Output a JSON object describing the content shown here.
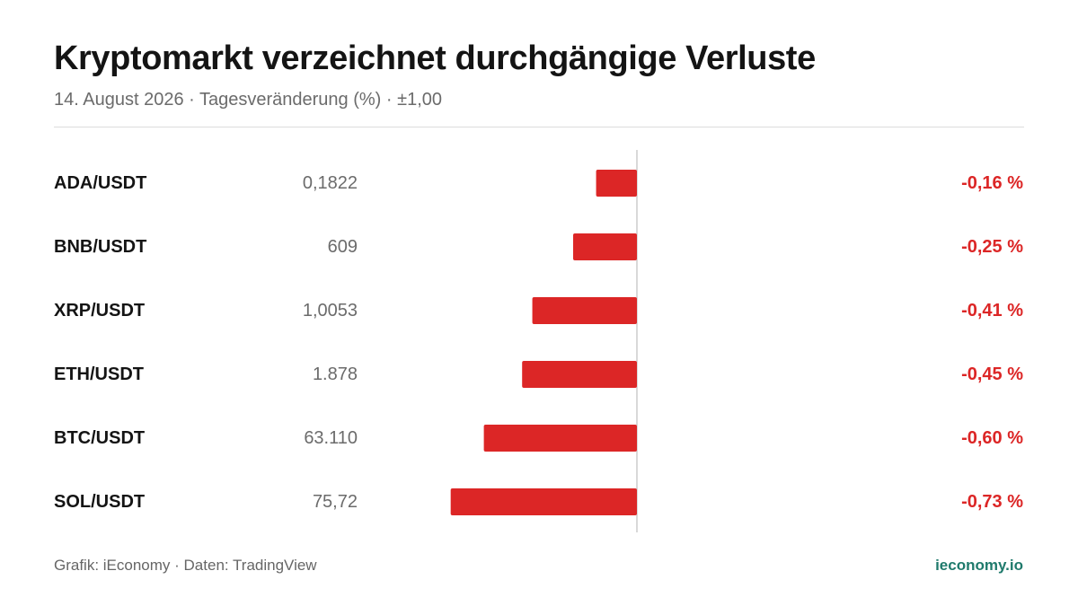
{
  "header": {
    "title": "Kryptomarkt verzeichnet durchgängige Verluste",
    "subtitle": "14. August 2026 · Tagesveränderung (%) · ±1,00"
  },
  "footer": {
    "source": "Grafik: iEconomy · Daten: TradingView",
    "brand": "ieconomy.io"
  },
  "colors": {
    "negative": "#dc2626",
    "axis": "#d9d9d9",
    "brand": "#1f7a6c"
  },
  "chart_data": {
    "type": "bar",
    "orientation": "horizontal",
    "categories": [
      "ADA/USDT",
      "BNB/USDT",
      "XRP/USDT",
      "ETH/USDT",
      "BTC/USDT",
      "SOL/USDT"
    ],
    "prices": [
      "0,1822",
      "609",
      "1,0053",
      "1.878",
      "63.110",
      "75,72"
    ],
    "values": [
      -0.16,
      -0.25,
      -0.41,
      -0.45,
      -0.6,
      -0.73
    ],
    "value_labels": [
      "-0,16 %",
      "-0,25 %",
      "-0,41 %",
      "-0,45 %",
      "-0,60 %",
      "-0,73 %"
    ],
    "xlim": [
      -1,
      1
    ],
    "grid": false,
    "legend": "none"
  }
}
